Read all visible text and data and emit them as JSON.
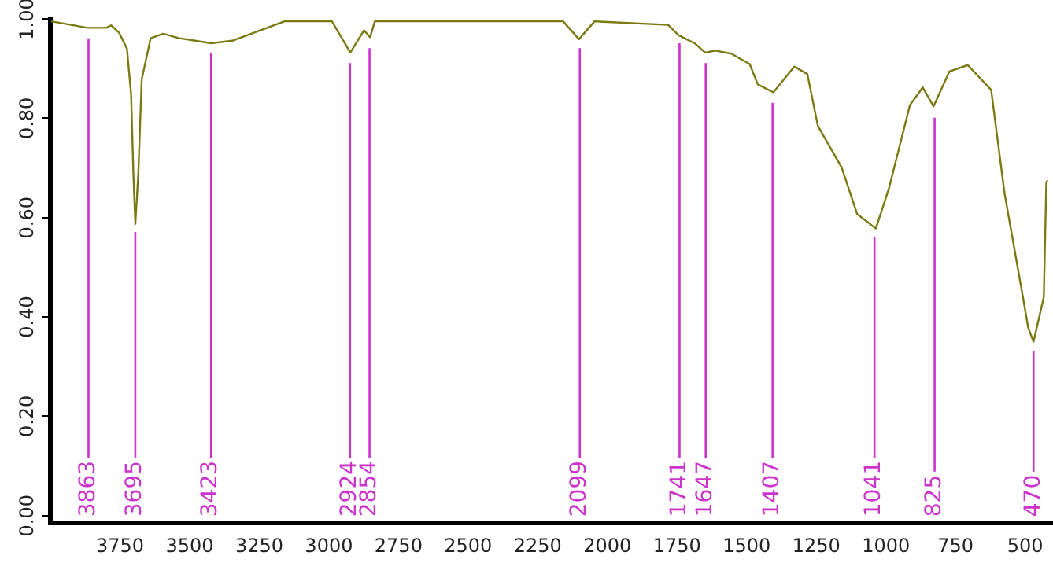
{
  "chart_data": {
    "type": "line",
    "xlim": [
      4000,
      400
    ],
    "ylim": [
      -0.015,
      1.0
    ],
    "xticks": [
      3750,
      3500,
      3250,
      3000,
      2750,
      2500,
      2250,
      2000,
      1750,
      1500,
      1250,
      1000,
      750,
      500
    ],
    "yticks": [
      {
        "value": 0,
        "label": "0.00"
      },
      {
        "value": 0.2,
        "label": "0.20"
      },
      {
        "value": 0.4,
        "label": "0.40"
      },
      {
        "value": 0.6,
        "label": "0.60"
      },
      {
        "value": 0.8,
        "label": "0.80"
      },
      {
        "value": 1.0,
        "label": "1.00"
      }
    ],
    "grid": false,
    "legend": false,
    "marker": "none",
    "line_style": "solid",
    "series": [
      {
        "color": "#7a7a12",
        "x": [
          3997,
          3866,
          3799,
          3782,
          3753,
          3725,
          3710,
          3702,
          3695,
          3684,
          3672,
          3640,
          3595,
          3537,
          3423,
          3347,
          3159,
          2989,
          2923,
          2874,
          2852,
          2835,
          2310,
          2159,
          2102,
          2046,
          1782,
          1744,
          1687,
          1649,
          1612,
          1555,
          1489,
          1460,
          1404,
          1329,
          1282,
          1244,
          1159,
          1103,
          1036,
          989,
          914,
          868,
          829,
          772,
          706,
          622,
          574,
          508,
          489,
          470,
          433,
          424,
          420
        ],
        "values": [
          0.995,
          0.982,
          0.982,
          0.987,
          0.972,
          0.94,
          0.847,
          0.69,
          0.587,
          0.69,
          0.878,
          0.961,
          0.97,
          0.961,
          0.951,
          0.956,
          0.995,
          0.995,
          0.932,
          0.977,
          0.963,
          0.995,
          0.995,
          0.995,
          0.959,
          0.995,
          0.988,
          0.967,
          0.951,
          0.932,
          0.936,
          0.93,
          0.909,
          0.868,
          0.852,
          0.904,
          0.889,
          0.784,
          0.701,
          0.607,
          0.578,
          0.659,
          0.826,
          0.862,
          0.824,
          0.894,
          0.907,
          0.857,
          0.649,
          0.44,
          0.378,
          0.35,
          0.44,
          0.67,
          0.675
        ]
      }
    ],
    "annotations": [
      {
        "text": "3863",
        "x": 3863,
        "y": 0.98
      },
      {
        "text": "3695",
        "x": 3695,
        "y": 0.59
      },
      {
        "text": "3423",
        "x": 3423,
        "y": 0.95
      },
      {
        "text": "2924",
        "x": 2924,
        "y": 0.93
      },
      {
        "text": "2854",
        "x": 2854,
        "y": 0.96
      },
      {
        "text": "2099",
        "x": 2099,
        "y": 0.96
      },
      {
        "text": "1741",
        "x": 1741,
        "y": 0.97
      },
      {
        "text": "1647",
        "x": 1647,
        "y": 0.93
      },
      {
        "text": "1407",
        "x": 1407,
        "y": 0.85
      },
      {
        "text": "1041",
        "x": 1041,
        "y": 0.58
      },
      {
        "text": "825",
        "x": 825,
        "y": 0.82
      },
      {
        "text": "470",
        "x": 470,
        "y": 0.35
      }
    ]
  }
}
